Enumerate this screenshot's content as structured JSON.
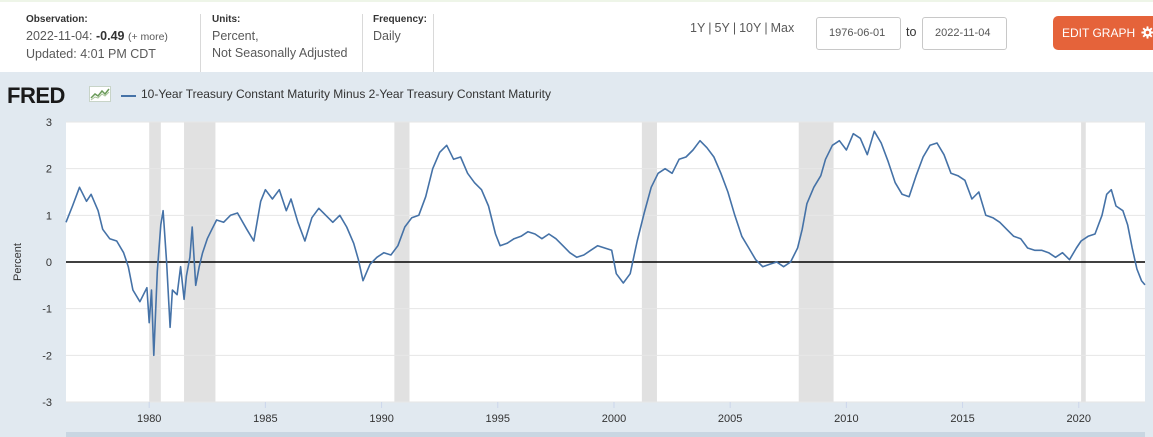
{
  "header": {
    "observation_label": "Observation:",
    "observation_date": "2022-11-04:",
    "observation_value": "-0.49",
    "observation_more": "(+ more)",
    "updated": "Updated: 4:01 PM CDT",
    "units_label": "Units:",
    "units_line1": "Percent,",
    "units_line2": "Not Seasonally Adjusted",
    "frequency_label": "Frequency:",
    "frequency_value": "Daily",
    "ranges": [
      "1Y",
      "5Y",
      "10Y",
      "Max"
    ],
    "range_sep": "|",
    "date_from": "1976-06-01",
    "date_to": "2022-11-04",
    "to_label": "to",
    "edit_button": "EDIT GRAPH",
    "edit_icon": "gear-icon",
    "edit_color": "#e5633a"
  },
  "brand": {
    "logo": "FRED",
    "logo_icon": "line-graph-icon"
  },
  "chart_data": {
    "type": "line",
    "title": "10-Year Treasury Constant Maturity Minus 2-Year Treasury Constant Maturity",
    "ylabel": "Percent",
    "xlabel": "",
    "xlim": [
      1976.42,
      2022.85
    ],
    "ylim": [
      -3,
      3
    ],
    "y_ticks": [
      3,
      2,
      1,
      0,
      -1,
      -2,
      -3
    ],
    "y_tick_labels": [
      "3",
      "2",
      "1",
      "0",
      "-1",
      "-2",
      "-3"
    ],
    "x_ticks": [
      1980,
      1985,
      1990,
      1995,
      2000,
      2005,
      2010,
      2015,
      2020
    ],
    "x_tick_labels": [
      "1980",
      "1985",
      "1990",
      "1995",
      "2000",
      "2005",
      "2010",
      "2015",
      "2020"
    ],
    "series_color": "#4572a7",
    "zero_line": true,
    "grid": "horizontal",
    "legend_position": "top-left",
    "recessions": [
      [
        1980.0,
        1980.5
      ],
      [
        1981.5,
        1982.85
      ],
      [
        1990.55,
        1991.2
      ],
      [
        2001.2,
        2001.85
      ],
      [
        2007.95,
        2009.45
      ],
      [
        2020.1,
        2020.3
      ]
    ],
    "series": [
      {
        "x": [
          1976.42,
          1976.7,
          1977.0,
          1977.3,
          1977.5,
          1977.8,
          1978.0,
          1978.3,
          1978.6,
          1978.9,
          1979.1,
          1979.3,
          1979.6,
          1979.9,
          1980.0,
          1980.1,
          1980.2,
          1980.35,
          1980.5,
          1980.6,
          1980.75,
          1980.9,
          1981.0,
          1981.2,
          1981.35,
          1981.5,
          1981.6,
          1981.75,
          1981.85,
          1982.0,
          1982.15,
          1982.3,
          1982.5,
          1982.7,
          1982.9,
          1983.2,
          1983.5,
          1983.8,
          1984.2,
          1984.5,
          1984.8,
          1985.0,
          1985.3,
          1985.6,
          1985.9,
          1986.1,
          1986.4,
          1986.7,
          1987.0,
          1987.3,
          1987.6,
          1987.9,
          1988.2,
          1988.5,
          1988.8,
          1989.0,
          1989.2,
          1989.5,
          1989.8,
          1990.1,
          1990.4,
          1990.7,
          1991.0,
          1991.3,
          1991.6,
          1991.9,
          1992.2,
          1992.5,
          1992.8,
          1993.1,
          1993.4,
          1993.7,
          1994.0,
          1994.3,
          1994.6,
          1994.9,
          1995.1,
          1995.4,
          1995.7,
          1996.0,
          1996.3,
          1996.6,
          1996.9,
          1997.2,
          1997.5,
          1997.8,
          1998.1,
          1998.4,
          1998.7,
          1999.0,
          1999.3,
          1999.6,
          1999.9,
          2000.1,
          2000.4,
          2000.7,
          2001.0,
          2001.3,
          2001.6,
          2001.9,
          2002.2,
          2002.5,
          2002.8,
          2003.1,
          2003.4,
          2003.7,
          2004.0,
          2004.3,
          2004.6,
          2004.9,
          2005.2,
          2005.5,
          2005.8,
          2006.1,
          2006.4,
          2006.7,
          2007.0,
          2007.3,
          2007.6,
          2007.9,
          2008.1,
          2008.3,
          2008.6,
          2008.9,
          2009.1,
          2009.4,
          2009.7,
          2010.0,
          2010.3,
          2010.6,
          2010.9,
          2011.2,
          2011.5,
          2011.8,
          2012.1,
          2012.4,
          2012.7,
          2013.0,
          2013.3,
          2013.6,
          2013.9,
          2014.2,
          2014.5,
          2014.8,
          2015.1,
          2015.4,
          2015.7,
          2016.0,
          2016.3,
          2016.6,
          2016.9,
          2017.2,
          2017.5,
          2017.8,
          2018.1,
          2018.4,
          2018.7,
          2019.0,
          2019.3,
          2019.6,
          2019.9,
          2020.1,
          2020.4,
          2020.7,
          2021.0,
          2021.2,
          2021.4,
          2021.6,
          2021.9,
          2022.1,
          2022.3,
          2022.5,
          2022.7,
          2022.85
        ],
        "y": [
          0.85,
          1.2,
          1.6,
          1.3,
          1.45,
          1.1,
          0.7,
          0.5,
          0.45,
          0.2,
          -0.1,
          -0.6,
          -0.85,
          -0.55,
          -1.3,
          -0.6,
          -2.0,
          -0.2,
          0.8,
          1.1,
          0.0,
          -1.4,
          -0.6,
          -0.7,
          -0.1,
          -0.8,
          -0.3,
          0.1,
          0.75,
          -0.5,
          -0.1,
          0.2,
          0.5,
          0.7,
          0.9,
          0.85,
          1.0,
          1.05,
          0.7,
          0.45,
          1.3,
          1.55,
          1.35,
          1.55,
          1.1,
          1.35,
          0.85,
          0.45,
          0.95,
          1.15,
          1.0,
          0.85,
          1.0,
          0.75,
          0.4,
          0.05,
          -0.4,
          -0.05,
          0.1,
          0.2,
          0.15,
          0.35,
          0.75,
          0.95,
          1.0,
          1.4,
          2.0,
          2.35,
          2.5,
          2.2,
          2.25,
          1.9,
          1.7,
          1.55,
          1.2,
          0.6,
          0.35,
          0.4,
          0.5,
          0.55,
          0.65,
          0.6,
          0.5,
          0.6,
          0.5,
          0.35,
          0.2,
          0.1,
          0.15,
          0.25,
          0.35,
          0.3,
          0.25,
          -0.25,
          -0.45,
          -0.25,
          0.45,
          1.05,
          1.6,
          1.9,
          2.0,
          1.9,
          2.2,
          2.25,
          2.4,
          2.6,
          2.45,
          2.25,
          1.9,
          1.5,
          1.0,
          0.55,
          0.3,
          0.05,
          -0.1,
          -0.05,
          0.0,
          -0.1,
          0.0,
          0.3,
          0.7,
          1.25,
          1.6,
          1.85,
          2.2,
          2.5,
          2.6,
          2.4,
          2.75,
          2.65,
          2.3,
          2.8,
          2.55,
          2.15,
          1.7,
          1.45,
          1.4,
          1.85,
          2.25,
          2.5,
          2.55,
          2.3,
          1.9,
          1.85,
          1.75,
          1.35,
          1.5,
          1.0,
          0.95,
          0.85,
          0.7,
          0.55,
          0.5,
          0.3,
          0.25,
          0.25,
          0.2,
          0.1,
          0.2,
          0.05,
          0.3,
          0.45,
          0.55,
          0.6,
          1.0,
          1.45,
          1.55,
          1.2,
          1.1,
          0.8,
          0.3,
          -0.15,
          -0.4,
          -0.49
        ]
      }
    ]
  }
}
